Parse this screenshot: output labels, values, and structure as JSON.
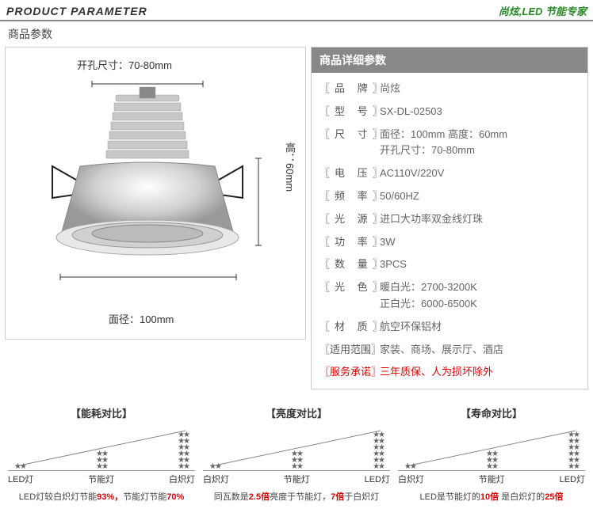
{
  "header": {
    "title_en": "PRODUCT PARAMETER",
    "brand_slogan": "尚炫,LED 节能专家",
    "subtitle": "商品参数"
  },
  "image": {
    "dim_top": "开孔尺寸：70-80mm",
    "dim_right": "高：60mm",
    "dim_bottom": "面径：100mm"
  },
  "spec": {
    "head": "商品详细参数",
    "rows": [
      {
        "key": "〖品  牌〗",
        "val": "尚炫",
        "tight": false
      },
      {
        "key": "〖型  号〗",
        "val": "SX-DL-02503",
        "tight": false
      },
      {
        "key": "〖尺  寸〗",
        "val": "面径：100mm 高度：60mm\n开孔尺寸：70-80mm",
        "tight": false
      },
      {
        "key": "〖电  压〗",
        "val": "AC110V/220V",
        "tight": false
      },
      {
        "key": "〖频  率〗",
        "val": "50/60HZ",
        "tight": false
      },
      {
        "key": "〖光  源〗",
        "val": "进口大功率双金线灯珠",
        "tight": false
      },
      {
        "key": "〖功  率〗",
        "val": "3W",
        "tight": false
      },
      {
        "key": "〖数  量〗",
        "val": "3PCS",
        "tight": false
      },
      {
        "key": "〖光  色〗",
        "val": "暖白光：2700-3200K\n正白光：6000-6500K",
        "tight": false
      },
      {
        "key": "〖材  质〗",
        "val": "航空环保铝材",
        "tight": false
      },
      {
        "key": "〖适用范围〗",
        "val": "家装、商场、展示厅、酒店",
        "tight": true
      },
      {
        "key": "〖服务承诺〗",
        "val": "三年质保、人为损坏除外",
        "tight": true,
        "red_val": true,
        "red_key": true
      }
    ]
  },
  "compare": [
    {
      "title": "【能耗对比】",
      "labels": [
        "LED灯",
        "节能灯",
        "白炽灯"
      ],
      "heights": [
        6,
        22,
        48
      ],
      "desc_parts": [
        "LED灯较白炽灯节能",
        "93%，",
        "节能灯节能",
        "70%"
      ]
    },
    {
      "title": "【亮度对比】",
      "labels": [
        "白炽灯",
        "节能灯",
        "LED灯"
      ],
      "heights": [
        6,
        22,
        48
      ],
      "desc_parts": [
        "同瓦数是",
        "2.5倍",
        "亮度于节能灯，",
        "7倍",
        "于白炽灯"
      ]
    },
    {
      "title": "【寿命对比】",
      "labels": [
        "白炽灯",
        "节能灯",
        "LED灯"
      ],
      "heights": [
        6,
        22,
        48
      ],
      "desc_parts": [
        "LED是节能灯的",
        "10倍",
        "  是白炽灯的",
        "25倍"
      ]
    }
  ]
}
